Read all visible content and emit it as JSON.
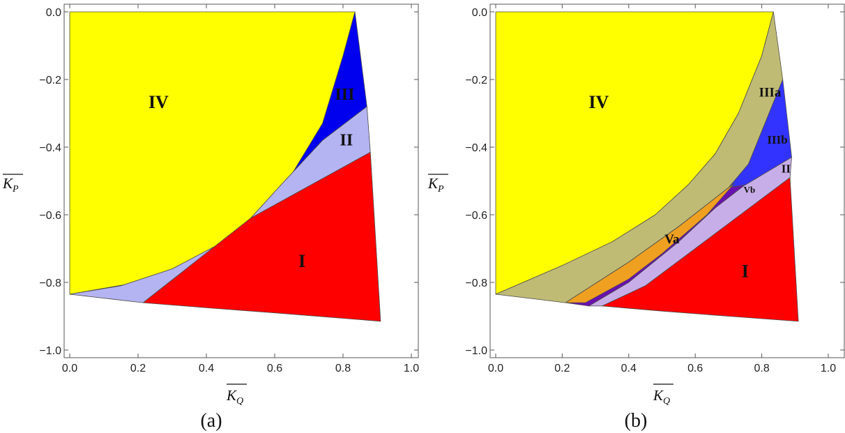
{
  "chart_data": [
    {
      "type": "area",
      "panel_label": "(a)",
      "xlabel": "K",
      "xlabel_sub": "Q",
      "ylabel": "K",
      "ylabel_sub": "P",
      "xlim": [
        0.0,
        1.0
      ],
      "ylim": [
        -1.0,
        0.0
      ],
      "xticks": [
        "0.0",
        "0.2",
        "0.4",
        "0.6",
        "0.8",
        "1.0"
      ],
      "yticks": [
        "0.0",
        "−0.2",
        "−0.4",
        "−0.6",
        "−0.8",
        "−1.0"
      ],
      "regions": [
        {
          "name": "IV",
          "color": "#ffff00",
          "points": [
            [
              0.0,
              0.0
            ],
            [
              0.835,
              0.0
            ],
            [
              0.8,
              -0.13
            ],
            [
              0.74,
              -0.33
            ],
            [
              0.62,
              -0.53
            ],
            [
              0.5,
              -0.65
            ],
            [
              0.35,
              -0.75
            ],
            [
              0.2,
              -0.8
            ],
            [
              0.0,
              -0.835
            ]
          ]
        },
        {
          "name": "III",
          "color": "#0000ee",
          "points": [
            [
              0.835,
              0.0
            ],
            [
              0.87,
              -0.28
            ],
            [
              0.74,
              -0.38
            ],
            [
              0.62,
              -0.51
            ],
            [
              0.53,
              -0.61
            ],
            [
              0.45,
              -0.68
            ],
            [
              0.3,
              -0.76
            ],
            [
              0.15,
              -0.81
            ],
            [
              0.0,
              -0.835
            ],
            [
              0.2,
              -0.8
            ],
            [
              0.35,
              -0.75
            ],
            [
              0.5,
              -0.65
            ],
            [
              0.62,
              -0.53
            ],
            [
              0.74,
              -0.33
            ],
            [
              0.8,
              -0.13
            ]
          ]
        },
        {
          "name": "II",
          "color": "#b4b4f2",
          "points": [
            [
              0.87,
              -0.28
            ],
            [
              0.88,
              -0.415
            ],
            [
              0.53,
              -0.61
            ],
            [
              0.215,
              -0.86
            ],
            [
              0.13,
              -0.85
            ],
            [
              0.0,
              -0.835
            ],
            [
              0.15,
              -0.81
            ],
            [
              0.3,
              -0.76
            ],
            [
              0.45,
              -0.68
            ],
            [
              0.53,
              -0.61
            ],
            [
              0.62,
              -0.51
            ],
            [
              0.74,
              -0.38
            ]
          ]
        },
        {
          "name": "I",
          "color": "#ff0000",
          "points": [
            [
              0.88,
              -0.415
            ],
            [
              0.91,
              -0.915
            ],
            [
              0.6,
              -0.89
            ],
            [
              0.4,
              -0.875
            ],
            [
              0.215,
              -0.86
            ],
            [
              0.53,
              -0.61
            ]
          ]
        }
      ],
      "labels": [
        {
          "text": "IV",
          "x": 0.26,
          "y": -0.285,
          "size": 26
        },
        {
          "text": "III",
          "x": 0.805,
          "y": -0.26,
          "size": 24
        },
        {
          "text": "II",
          "x": 0.81,
          "y": -0.395,
          "size": 24
        },
        {
          "text": "I",
          "x": 0.68,
          "y": -0.755,
          "size": 26
        }
      ]
    },
    {
      "type": "area",
      "panel_label": "(b)",
      "xlabel": "K",
      "xlabel_sub": "Q",
      "ylabel": "K",
      "ylabel_sub": "P",
      "xlim": [
        0.0,
        1.0
      ],
      "ylim": [
        -1.0,
        0.0
      ],
      "xticks": [
        "0.0",
        "0.2",
        "0.4",
        "0.6",
        "0.8",
        "1.0"
      ],
      "yticks": [
        "0.0",
        "−0.2",
        "−0.4",
        "−0.6",
        "−0.8",
        "−1.0"
      ],
      "regions": [
        {
          "name": "IV",
          "color": "#ffff00",
          "points": [
            [
              0.0,
              0.0
            ],
            [
              0.835,
              0.0
            ],
            [
              0.8,
              -0.13
            ],
            [
              0.73,
              -0.3
            ],
            [
              0.66,
              -0.42
            ],
            [
              0.58,
              -0.51
            ],
            [
              0.48,
              -0.6
            ],
            [
              0.35,
              -0.68
            ],
            [
              0.2,
              -0.75
            ],
            [
              0.0,
              -0.835
            ]
          ]
        },
        {
          "name": "IIIa",
          "color": "#bfbb75",
          "points": [
            [
              0.835,
              0.0
            ],
            [
              0.863,
              -0.2
            ],
            [
              0.76,
              -0.45
            ],
            [
              0.7,
              -0.52
            ],
            [
              0.55,
              -0.635
            ],
            [
              0.4,
              -0.74
            ],
            [
              0.21,
              -0.86
            ],
            [
              0.0,
              -0.835
            ],
            [
              0.2,
              -0.75
            ],
            [
              0.35,
              -0.68
            ],
            [
              0.48,
              -0.6
            ],
            [
              0.58,
              -0.51
            ],
            [
              0.66,
              -0.42
            ],
            [
              0.73,
              -0.3
            ],
            [
              0.8,
              -0.13
            ]
          ]
        },
        {
          "name": "IIIb",
          "color": "#3333ff",
          "points": [
            [
              0.863,
              -0.2
            ],
            [
              0.89,
              -0.43
            ],
            [
              0.76,
              -0.51
            ],
            [
              0.7,
              -0.52
            ],
            [
              0.76,
              -0.45
            ]
          ]
        },
        {
          "name": "Vb",
          "color": "#6a10b0",
          "points": [
            [
              0.89,
              -0.43
            ],
            [
              0.745,
              -0.515
            ],
            [
              0.66,
              -0.58
            ],
            [
              0.55,
              -0.68
            ],
            [
              0.4,
              -0.8
            ],
            [
              0.28,
              -0.87
            ],
            [
              0.21,
              -0.86
            ],
            [
              0.4,
              -0.74
            ],
            [
              0.55,
              -0.635
            ],
            [
              0.7,
              -0.52
            ],
            [
              0.76,
              -0.51
            ]
          ]
        },
        {
          "name": "II",
          "color": "#c8aee8",
          "points": [
            [
              0.89,
              -0.43
            ],
            [
              0.885,
              -0.49
            ],
            [
              0.6,
              -0.7
            ],
            [
              0.45,
              -0.81
            ],
            [
              0.32,
              -0.87
            ],
            [
              0.28,
              -0.87
            ],
            [
              0.4,
              -0.8
            ],
            [
              0.55,
              -0.68
            ],
            [
              0.66,
              -0.58
            ],
            [
              0.745,
              -0.515
            ]
          ]
        },
        {
          "name": "Va",
          "color": "#f0a020",
          "points": [
            [
              0.72,
              -0.505
            ],
            [
              0.635,
              -0.6
            ],
            [
              0.5,
              -0.715
            ],
            [
              0.4,
              -0.79
            ],
            [
              0.27,
              -0.86
            ],
            [
              0.21,
              -0.86
            ],
            [
              0.4,
              -0.74
            ],
            [
              0.55,
              -0.635
            ],
            [
              0.7,
              -0.52
            ]
          ]
        },
        {
          "name": "I",
          "color": "#ff0000",
          "points": [
            [
              0.885,
              -0.49
            ],
            [
              0.91,
              -0.915
            ],
            [
              0.7,
              -0.9
            ],
            [
              0.5,
              -0.885
            ],
            [
              0.32,
              -0.87
            ],
            [
              0.45,
              -0.81
            ],
            [
              0.6,
              -0.7
            ]
          ]
        }
      ],
      "labels": [
        {
          "text": "IV",
          "x": 0.31,
          "y": -0.285,
          "size": 26
        },
        {
          "text": "IIIa",
          "x": 0.825,
          "y": -0.25,
          "size": 19
        },
        {
          "text": "IIIb",
          "x": 0.847,
          "y": -0.39,
          "size": 17
        },
        {
          "text": "II",
          "x": 0.873,
          "y": -0.475,
          "size": 17
        },
        {
          "text": "Vb",
          "x": 0.763,
          "y": -0.535,
          "size": 13
        },
        {
          "text": "Va",
          "x": 0.53,
          "y": -0.685,
          "size": 19
        },
        {
          "text": "I",
          "x": 0.75,
          "y": -0.785,
          "size": 26
        }
      ]
    }
  ]
}
